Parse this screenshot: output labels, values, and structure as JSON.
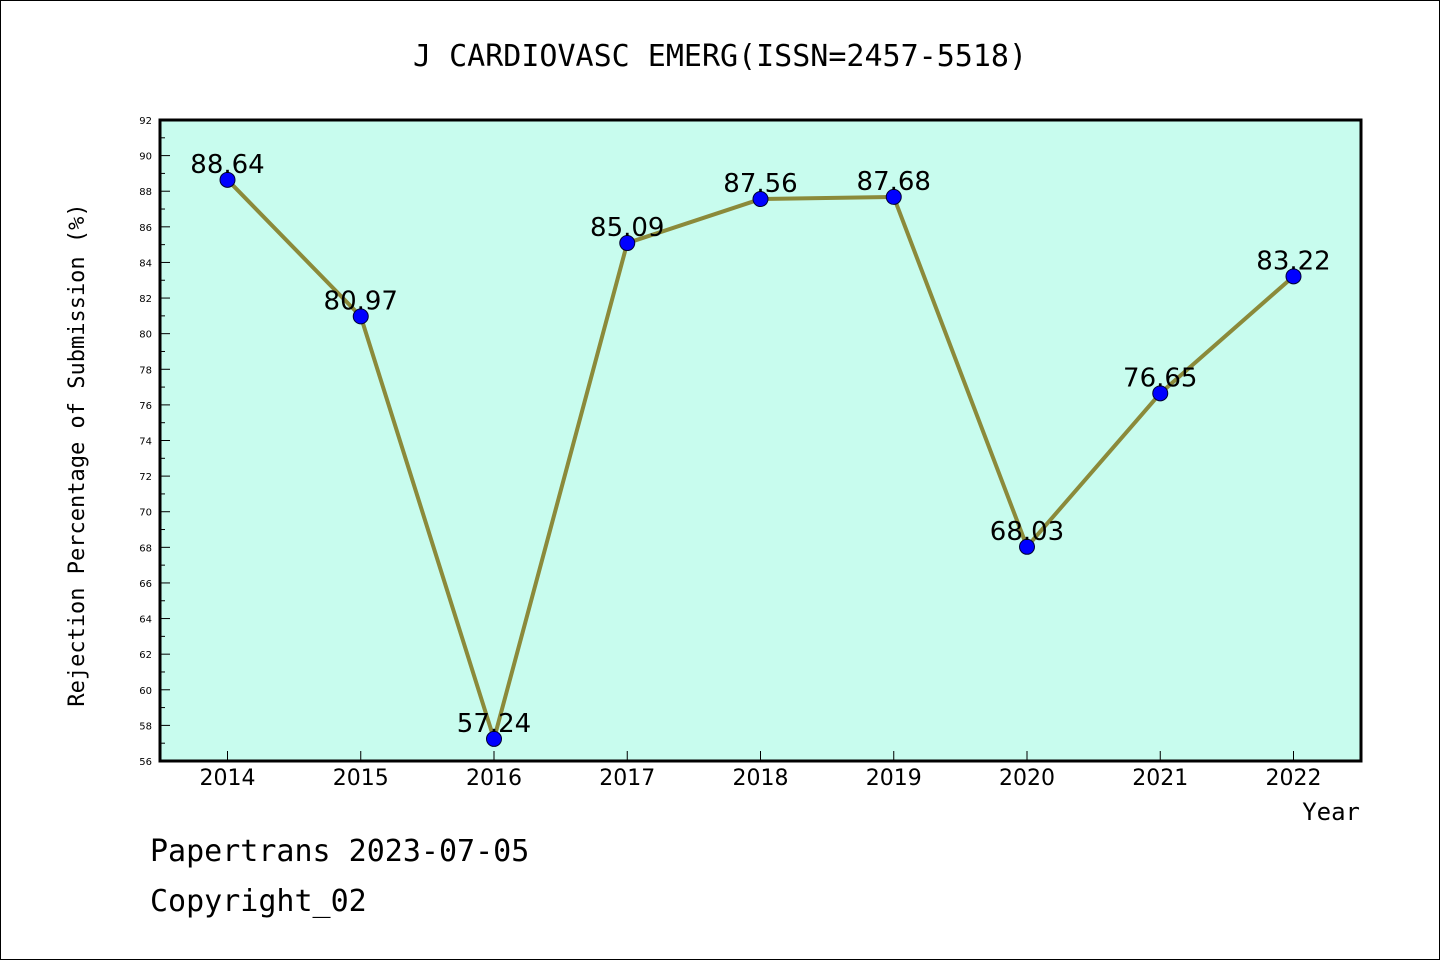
{
  "chart_data": {
    "type": "line",
    "title": "J CARDIOVASC EMERG(ISSN=2457-5518)",
    "xlabel": "Year",
    "ylabel": "Rejection Percentage of Submission (%)",
    "categories": [
      "2014",
      "2015",
      "2016",
      "2017",
      "2018",
      "2019",
      "2020",
      "2021",
      "2022"
    ],
    "series": [
      {
        "values": [
          88.64,
          80.97,
          57.24,
          85.09,
          87.56,
          87.68,
          68.03,
          76.65,
          83.22
        ]
      }
    ],
    "data_labels": [
      "88.64",
      "80.97",
      "57.24",
      "85.09",
      "87.56",
      "87.68",
      "68.03",
      "76.65",
      "83.22"
    ],
    "ylim": [
      56,
      92
    ],
    "yticks": [
      "56",
      "58",
      "60",
      "62",
      "64",
      "66",
      "68",
      "70",
      "72",
      "74",
      "76",
      "78",
      "80",
      "82",
      "84",
      "86",
      "88",
      "90",
      "92"
    ],
    "grid": false,
    "legend": "none",
    "colors": {
      "plot_bg": "#c8fcee",
      "line": "#8b8a3a",
      "marker": "#0000ff"
    }
  },
  "footer": {
    "line1": "Papertrans 2023-07-05",
    "line2": "Copyright_02"
  }
}
